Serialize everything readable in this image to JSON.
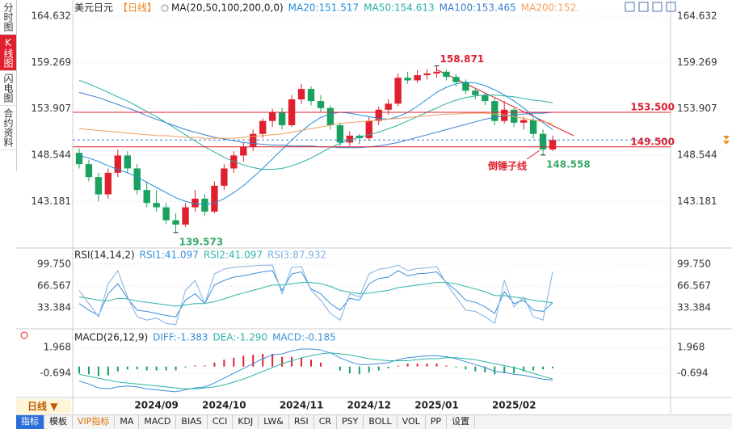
{
  "sidebar": {
    "tabs": [
      "分时图",
      "K线图",
      "闪电图",
      "合约资料"
    ]
  },
  "period_button": "日线",
  "toolbar": [
    "指标",
    "模板",
    "VIP指标",
    "MA",
    "MACD",
    "BIAS",
    "CCI",
    "KDJ",
    "LW&",
    "RSI",
    "CR",
    "PSY",
    "BOLL",
    "VOL",
    "PP",
    "设置"
  ],
  "chart_data": [
    {
      "type": "candlestick",
      "title": "美元日元",
      "period": "【日线】",
      "indicator": "MA(20,50,100,200,0,0)",
      "categories": [
        null,
        null,
        null,
        null,
        null,
        null,
        null,
        null,
        "2024/09",
        null,
        null,
        null,
        null,
        null,
        null,
        "2024/10",
        null,
        null,
        null,
        null,
        null,
        null,
        null,
        "2024/11",
        null,
        null,
        null,
        null,
        null,
        null,
        "2024/12",
        null,
        null,
        null,
        null,
        null,
        null,
        "2025/01",
        null,
        null,
        null,
        null,
        null,
        null,
        null,
        "2025/02",
        null,
        null,
        null,
        null
      ],
      "candles": [
        [
          148.8,
          149.3,
          147.0,
          147.5
        ],
        [
          147.5,
          148.0,
          145.5,
          146.0
        ],
        [
          146.0,
          146.5,
          143.2,
          144.0
        ],
        [
          144.0,
          147.0,
          143.5,
          146.5
        ],
        [
          146.5,
          149.2,
          146.0,
          148.5
        ],
        [
          148.5,
          149.0,
          146.5,
          147.0
        ],
        [
          147.0,
          147.5,
          144.0,
          144.5
        ],
        [
          144.5,
          145.5,
          142.5,
          143.0
        ],
        [
          143.0,
          144.5,
          142.0,
          142.5
        ],
        [
          142.5,
          143.0,
          140.6,
          141.0
        ],
        [
          141.0,
          141.8,
          139.573,
          140.5
        ],
        [
          140.5,
          143.0,
          140.2,
          142.5
        ],
        [
          142.5,
          144.5,
          142.0,
          143.5
        ],
        [
          143.5,
          144.0,
          141.5,
          142.0
        ],
        [
          142.0,
          145.5,
          141.8,
          145.0
        ],
        [
          145.0,
          147.5,
          144.5,
          147.0
        ],
        [
          147.0,
          149.0,
          146.5,
          148.5
        ],
        [
          148.5,
          150.0,
          147.8,
          149.5
        ],
        [
          149.5,
          151.5,
          149.0,
          151.0
        ],
        [
          151.0,
          152.8,
          150.5,
          152.5
        ],
        [
          152.5,
          153.9,
          151.8,
          153.5
        ],
        [
          153.5,
          154.0,
          151.5,
          152.0
        ],
        [
          152.0,
          155.5,
          151.8,
          155.0
        ],
        [
          155.0,
          156.8,
          154.5,
          156.2
        ],
        [
          156.2,
          156.5,
          154.3,
          154.8
        ],
        [
          154.8,
          155.5,
          153.5,
          154.0
        ],
        [
          154.0,
          154.3,
          151.5,
          152.0
        ],
        [
          152.0,
          152.3,
          149.6,
          150.0
        ],
        [
          150.0,
          151.3,
          149.6,
          150.8
        ],
        [
          150.8,
          151.0,
          149.8,
          150.5
        ],
        [
          150.5,
          153.0,
          150.2,
          152.5
        ],
        [
          152.5,
          154.2,
          152.0,
          153.8
        ],
        [
          153.8,
          155.0,
          153.2,
          154.5
        ],
        [
          154.5,
          158.0,
          154.2,
          157.5
        ],
        [
          157.5,
          158.2,
          156.8,
          157.2
        ],
        [
          157.2,
          158.4,
          156.9,
          157.8
        ],
        [
          157.8,
          158.5,
          157.3,
          158.0
        ],
        [
          158.0,
          158.871,
          157.5,
          158.2
        ],
        [
          158.2,
          158.4,
          157.2,
          157.6
        ],
        [
          157.6,
          157.9,
          156.5,
          157.0
        ],
        [
          157.0,
          157.3,
          155.6,
          156.0
        ],
        [
          156.0,
          156.3,
          155.0,
          155.5
        ],
        [
          155.5,
          155.8,
          154.3,
          154.8
        ],
        [
          154.8,
          155.2,
          152.0,
          152.5
        ],
        [
          152.5,
          154.8,
          152.2,
          153.8
        ],
        [
          153.8,
          154.0,
          151.8,
          152.3
        ],
        [
          152.3,
          153.0,
          151.5,
          152.6
        ],
        [
          152.6,
          152.9,
          150.5,
          151.0
        ],
        [
          151.0,
          151.5,
          148.558,
          149.2
        ],
        [
          149.2,
          150.8,
          149.0,
          150.3
        ]
      ],
      "up_color": "#e0202e",
      "down_color": "#19a15f",
      "series": [
        {
          "name": "MA20:151.517",
          "color": "#1f8fd8",
          "values": [
            148.5,
            148.2,
            147.8,
            147.3,
            146.9,
            146.5,
            146.0,
            145.4,
            144.8,
            144.2,
            143.6,
            143.2,
            142.9,
            142.8,
            143.0,
            143.5,
            144.2,
            145.0,
            146.0,
            147.0,
            148.1,
            149.2,
            150.3,
            151.3,
            152.2,
            152.9,
            153.3,
            153.5,
            153.4,
            153.2,
            153.0,
            152.8,
            152.7,
            153.0,
            153.5,
            154.2,
            155.0,
            155.8,
            156.4,
            156.8,
            157.0,
            156.9,
            156.6,
            156.1,
            155.5,
            154.8,
            154.0,
            153.1,
            152.3,
            151.5
          ]
        },
        {
          "name": "MA50:154.613",
          "color": "#28b0a0",
          "values": [
            157.2,
            156.8,
            156.3,
            155.8,
            155.3,
            154.8,
            154.2,
            153.6,
            153.0,
            152.3,
            151.6,
            150.9,
            150.2,
            149.5,
            148.9,
            148.3,
            147.8,
            147.4,
            147.1,
            146.9,
            146.9,
            147.0,
            147.3,
            147.7,
            148.2,
            148.8,
            149.4,
            149.9,
            150.3,
            150.6,
            150.9,
            151.2,
            151.6,
            152.0,
            152.5,
            153.0,
            153.5,
            154.0,
            154.5,
            154.9,
            155.2,
            155.4,
            155.5,
            155.5,
            155.4,
            155.3,
            155.1,
            154.9,
            154.8,
            154.6
          ]
        },
        {
          "name": "MA100:153.465",
          "color": "#3a7ed0",
          "values": [
            155.8,
            155.5,
            155.2,
            154.8,
            154.4,
            154.0,
            153.6,
            153.1,
            152.7,
            152.3,
            151.9,
            151.5,
            151.2,
            150.9,
            150.6,
            150.4,
            150.2,
            150.0,
            149.9,
            149.8,
            149.7,
            149.7,
            149.6,
            149.6,
            149.6,
            149.5,
            149.5,
            149.4,
            149.4,
            149.4,
            149.5,
            149.6,
            149.8,
            150.0,
            150.3,
            150.6,
            150.9,
            151.2,
            151.5,
            151.8,
            152.1,
            152.4,
            152.7,
            152.9,
            153.1,
            153.2,
            153.3,
            153.4,
            153.4,
            153.5
          ]
        },
        {
          "name": "MA200:152.",
          "color": "#f0a060",
          "values": [
            151.6,
            151.5,
            151.4,
            151.3,
            151.2,
            151.1,
            151.0,
            150.9,
            150.8,
            150.8,
            150.7,
            150.6,
            150.6,
            150.5,
            150.5,
            150.5,
            150.5,
            150.6,
            150.7,
            150.8,
            150.9,
            151.0,
            151.2,
            151.4,
            151.6,
            151.8,
            152.0,
            152.2,
            152.3,
            152.4,
            152.5,
            152.6,
            152.7,
            152.8,
            152.9,
            153.0,
            153.1,
            153.2,
            153.3,
            153.3,
            153.4,
            153.4,
            153.4,
            153.3,
            153.2,
            153.0,
            152.8,
            152.6,
            152.4,
            152.2
          ]
        }
      ],
      "hlines": [
        {
          "value": 153.5,
          "label": "153.500",
          "color": "#e0202e"
        },
        {
          "value": 149.5,
          "label": "149.500",
          "color": "#e0202e"
        }
      ],
      "last_line_color": "#3a7ed0",
      "annotations": [
        {
          "value": 158.871,
          "label": "158.871",
          "color": "#e0202e"
        },
        {
          "value": 139.573,
          "label": "139.573",
          "color": "#3aa86b"
        },
        {
          "value": 148.558,
          "label": "148.558",
          "color": "#3aa86b"
        }
      ],
      "pattern": "倒锤子线",
      "ylim": [
        137.97,
        165.57
      ],
      "yticks": [
        164.632,
        159.269,
        153.907,
        148.544,
        143.181
      ],
      "grid": true
    },
    {
      "type": "line",
      "title": "RSI(14,14,2)",
      "series": [
        {
          "name": "RSI1:41.097",
          "color": "#3a8fd8",
          "values": [
            40,
            30,
            22,
            55,
            70,
            48,
            30,
            28,
            25,
            22,
            20,
            45,
            55,
            40,
            68,
            75,
            80,
            82,
            85,
            88,
            90,
            60,
            85,
            88,
            62,
            55,
            40,
            30,
            48,
            45,
            70,
            78,
            80,
            90,
            82,
            85,
            86,
            88,
            72,
            60,
            45,
            42,
            35,
            25,
            58,
            40,
            45,
            30,
            28,
            41.1
          ]
        },
        {
          "name": "RSI2:41.097",
          "color": "#2bb5a5",
          "values": [
            50,
            48,
            45,
            44,
            48,
            47,
            44,
            42,
            40,
            38,
            36,
            38,
            40,
            40,
            43,
            47,
            52,
            56,
            60,
            64,
            68,
            68,
            70,
            72,
            72,
            70,
            66,
            60,
            57,
            55,
            56,
            58,
            60,
            64,
            66,
            68,
            70,
            72,
            72,
            70,
            66,
            62,
            58,
            52,
            52,
            50,
            48,
            45,
            43,
            41.1
          ]
        },
        {
          "name": "RSI3:87.932",
          "color": "#7fb0e0",
          "values": [
            60,
            40,
            20,
            70,
            90,
            50,
            20,
            15,
            18,
            10,
            8,
            60,
            75,
            40,
            85,
            92,
            95,
            96,
            97,
            98,
            98,
            55,
            95,
            96,
            60,
            45,
            25,
            15,
            55,
            50,
            85,
            92,
            94,
            98,
            90,
            93,
            94,
            96,
            70,
            50,
            30,
            28,
            20,
            10,
            75,
            35,
            50,
            20,
            15,
            87.9
          ]
        }
      ],
      "ylim": [
        4.2,
        120.4
      ],
      "yticks": [
        {
          "value": 99.75,
          "label": "99.750"
        },
        66.567,
        33.384
      ],
      "grid": true
    },
    {
      "type": "macd",
      "title": "MACD(26,12,9)",
      "series": [
        {
          "name": "DIFF:-1.383",
          "color": "#3a8fd8",
          "values": [
            -1.5,
            -1.8,
            -2.2,
            -2.3,
            -2.1,
            -2.0,
            -2.1,
            -2.3,
            -2.4,
            -2.5,
            -2.6,
            -2.4,
            -2.2,
            -2.1,
            -1.7,
            -1.2,
            -0.7,
            -0.2,
            0.3,
            0.8,
            1.2,
            1.3,
            1.6,
            1.8,
            1.8,
            1.7,
            1.4,
            0.9,
            0.5,
            0.2,
            0.2,
            0.3,
            0.4,
            0.7,
            0.9,
            1.0,
            1.1,
            1.1,
            1.0,
            0.8,
            0.5,
            0.2,
            -0.1,
            -0.5,
            -0.6,
            -0.8,
            -0.9,
            -1.1,
            -1.3,
            -1.383
          ]
        },
        {
          "name": "DEA:-1.290",
          "color": "#2bb5a5",
          "values": [
            -0.8,
            -1.0,
            -1.2,
            -1.4,
            -1.6,
            -1.7,
            -1.8,
            -1.9,
            -2.0,
            -2.1,
            -2.2,
            -2.3,
            -2.3,
            -2.2,
            -2.1,
            -1.9,
            -1.6,
            -1.3,
            -0.9,
            -0.5,
            -0.1,
            0.3,
            0.6,
            0.9,
            1.1,
            1.3,
            1.4,
            1.3,
            1.2,
            1.0,
            0.8,
            0.7,
            0.6,
            0.6,
            0.6,
            0.7,
            0.8,
            0.8,
            0.9,
            0.9,
            0.8,
            0.7,
            0.5,
            0.3,
            0.1,
            -0.1,
            -0.4,
            -0.7,
            -1.0,
            -1.29
          ]
        }
      ],
      "bars": {
        "name": "MACD:-0.185",
        "color": "#3a8fd8",
        "values": [
          -0.7,
          -0.8,
          -1.0,
          -0.9,
          -0.5,
          -0.3,
          -0.3,
          -0.4,
          -0.4,
          -0.4,
          -0.4,
          -0.1,
          0.1,
          0.1,
          0.4,
          0.7,
          0.9,
          1.1,
          1.2,
          1.3,
          1.3,
          1.0,
          1.0,
          0.9,
          0.7,
          0.4,
          0.0,
          -0.4,
          -0.7,
          -0.8,
          -0.6,
          -0.4,
          -0.2,
          0.1,
          0.3,
          0.3,
          0.3,
          0.3,
          0.1,
          -0.1,
          -0.3,
          -0.5,
          -0.6,
          -0.8,
          -0.7,
          -0.7,
          -0.5,
          -0.4,
          -0.3,
          -0.185
        ]
      },
      "up_color": "#e0202e",
      "down_color": "#19a15f",
      "ylim": [
        -3.02,
        3.63
      ],
      "yticks": [
        1.968,
        -0.694
      ],
      "grid": true
    }
  ]
}
